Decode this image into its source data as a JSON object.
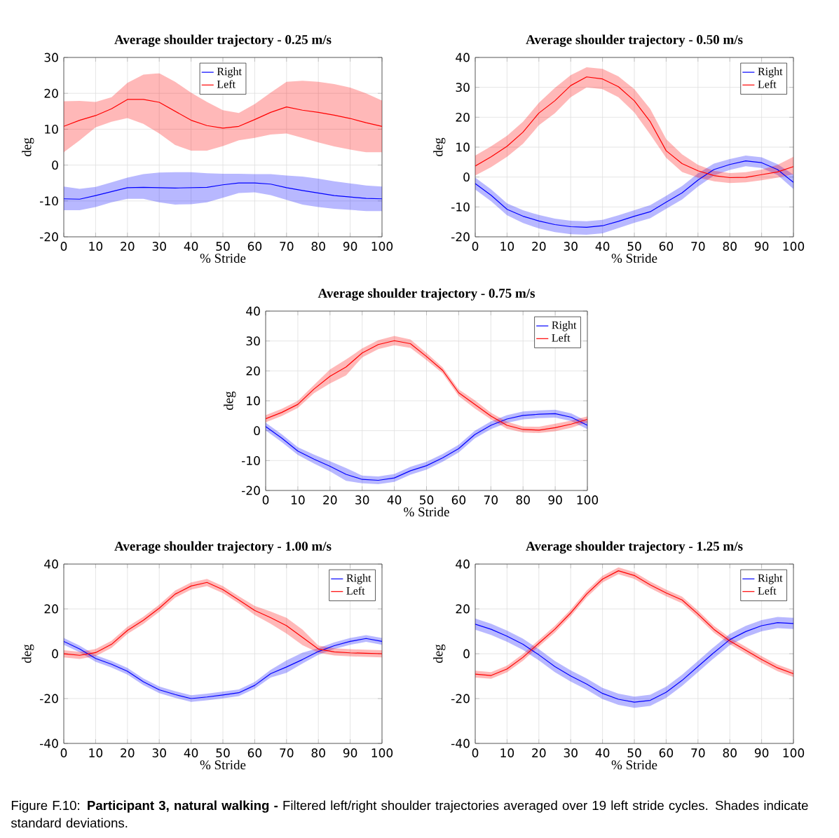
{
  "chart_data": [
    {
      "type": "line",
      "title": "Average shoulder trajectory - 0.25 m/s",
      "xlabel": "% Stride",
      "ylabel": "deg",
      "x": [
        0,
        5,
        10,
        15,
        20,
        25,
        30,
        35,
        40,
        45,
        50,
        55,
        60,
        65,
        70,
        75,
        80,
        85,
        90,
        95,
        100
      ],
      "xlim": [
        0,
        100
      ],
      "ylim": [
        -20,
        30
      ],
      "xticks": [
        0,
        10,
        20,
        30,
        40,
        50,
        60,
        70,
        80,
        90,
        100
      ],
      "yticks": [
        -20,
        -10,
        0,
        10,
        20,
        30
      ],
      "grid": true,
      "legend": "top",
      "series": [
        {
          "name": "Right",
          "color": "#0000ff",
          "values": [
            -9.4,
            -9.5,
            -8.5,
            -7.4,
            -6.3,
            -6.2,
            -6.3,
            -6.4,
            -6.3,
            -6.2,
            -5.5,
            -5.0,
            -5.0,
            -5.3,
            -6.3,
            -7.1,
            -7.8,
            -8.5,
            -8.9,
            -9.3,
            -9.4
          ],
          "upper": [
            -6.0,
            -6.6,
            -6.1,
            -4.8,
            -3.5,
            -2.5,
            -2.1,
            -2.0,
            -2.0,
            -2.3,
            -2.4,
            -2.4,
            -2.5,
            -2.5,
            -2.9,
            -3.2,
            -3.8,
            -4.5,
            -5.1,
            -5.7,
            -6.0
          ],
          "lower": [
            -12.6,
            -12.6,
            -11.7,
            -10.4,
            -9.4,
            -9.4,
            -10.4,
            -11.0,
            -10.9,
            -10.4,
            -9.1,
            -7.8,
            -7.6,
            -8.4,
            -9.7,
            -11.0,
            -11.7,
            -12.2,
            -12.5,
            -12.8,
            -12.8
          ]
        },
        {
          "name": "Left",
          "color": "#ff0000",
          "values": [
            10.8,
            12.5,
            13.8,
            15.7,
            18.3,
            18.3,
            17.5,
            15.0,
            12.5,
            11.0,
            10.3,
            10.8,
            12.7,
            14.7,
            16.2,
            15.3,
            14.7,
            13.9,
            13.0,
            11.8,
            10.8
          ],
          "upper": [
            17.8,
            17.9,
            17.6,
            18.9,
            22.9,
            25.2,
            25.6,
            23.2,
            20.2,
            17.6,
            15.3,
            14.5,
            17.0,
            20.2,
            23.2,
            23.5,
            23.2,
            22.6,
            21.6,
            20.0,
            18.0
          ],
          "lower": [
            3.6,
            6.9,
            10.5,
            12.1,
            13.1,
            11.5,
            8.8,
            5.6,
            4.0,
            4.0,
            5.3,
            6.9,
            7.6,
            8.5,
            8.8,
            7.6,
            6.3,
            5.2,
            4.3,
            3.6,
            3.6
          ]
        }
      ]
    },
    {
      "type": "line",
      "title": "Average shoulder trajectory - 0.50 m/s",
      "xlabel": "% Stride",
      "ylabel": "deg",
      "x": [
        0,
        5,
        10,
        15,
        20,
        25,
        30,
        35,
        40,
        45,
        50,
        55,
        60,
        65,
        70,
        75,
        80,
        85,
        90,
        95,
        100
      ],
      "xlim": [
        0,
        100
      ],
      "ylim": [
        -20,
        40
      ],
      "xticks": [
        0,
        10,
        20,
        30,
        40,
        50,
        60,
        70,
        80,
        90,
        100
      ],
      "yticks": [
        -20,
        -10,
        0,
        10,
        20,
        30,
        40
      ],
      "grid": true,
      "legend": "top right",
      "series": [
        {
          "name": "Right",
          "color": "#0000ff",
          "values": [
            -2.2,
            -6.1,
            -10.8,
            -13.1,
            -14.7,
            -15.9,
            -16.6,
            -16.8,
            -16.3,
            -14.8,
            -13.1,
            -11.6,
            -8.4,
            -5.3,
            -1.0,
            2.5,
            4.2,
            5.4,
            4.8,
            2.5,
            -1.8
          ],
          "upper": [
            -0.2,
            -4.1,
            -8.8,
            -11.1,
            -12.7,
            -13.9,
            -14.6,
            -14.8,
            -14.3,
            -12.8,
            -11.1,
            -9.4,
            -6.3,
            -3.0,
            1.2,
            4.5,
            6.0,
            7.2,
            6.6,
            4.3,
            0.8
          ],
          "lower": [
            -4.2,
            -8.1,
            -12.8,
            -15.4,
            -17.2,
            -18.4,
            -19.1,
            -19.3,
            -18.8,
            -17.1,
            -15.3,
            -13.8,
            -10.6,
            -7.5,
            -3.2,
            0.5,
            2.4,
            3.6,
            3.0,
            0.7,
            -4.0
          ]
        },
        {
          "name": "Left",
          "color": "#ff0000",
          "values": [
            3.7,
            6.8,
            10.3,
            15.0,
            21.4,
            25.5,
            30.6,
            33.5,
            32.8,
            30.2,
            25.5,
            18.5,
            8.8,
            4.5,
            2.1,
            0.5,
            -0.2,
            -0.1,
            0.8,
            1.7,
            3.5
          ],
          "upper": [
            7.2,
            10.3,
            13.8,
            18.5,
            24.8,
            29.8,
            34.1,
            36.7,
            36.2,
            33.7,
            29.4,
            22.8,
            12.7,
            7.6,
            4.1,
            2.1,
            1.3,
            1.6,
            2.5,
            4.1,
            6.8
          ],
          "lower": [
            0.5,
            3.3,
            6.8,
            11.1,
            17.3,
            21.3,
            26.7,
            30.0,
            29.4,
            26.7,
            21.6,
            14.2,
            6.4,
            1.7,
            -0.2,
            -1.4,
            -2.0,
            -1.8,
            -1.1,
            -0.2,
            0.9
          ]
        }
      ]
    },
    {
      "type": "line",
      "title": "Average shoulder trajectory - 0.75 m/s",
      "xlabel": "% Stride",
      "ylabel": "deg",
      "x": [
        0,
        5,
        10,
        15,
        20,
        25,
        30,
        35,
        40,
        45,
        50,
        55,
        60,
        65,
        70,
        75,
        80,
        85,
        90,
        95,
        100
      ],
      "xlim": [
        0,
        100
      ],
      "ylim": [
        -20,
        40
      ],
      "xticks": [
        0,
        10,
        20,
        30,
        40,
        50,
        60,
        70,
        80,
        90,
        100
      ],
      "yticks": [
        -20,
        -10,
        0,
        10,
        20,
        30,
        40
      ],
      "grid": true,
      "legend": "top right",
      "series": [
        {
          "name": "Right",
          "color": "#0000ff",
          "values": [
            1.4,
            -2.5,
            -6.8,
            -9.5,
            -11.9,
            -14.6,
            -16.3,
            -16.6,
            -15.8,
            -13.4,
            -11.7,
            -9.1,
            -6.0,
            -1.3,
            1.8,
            3.9,
            5.1,
            5.5,
            5.7,
            4.5,
            1.8
          ],
          "upper": [
            2.7,
            -1.2,
            -5.5,
            -8.0,
            -10.2,
            -12.5,
            -15.0,
            -15.3,
            -14.5,
            -12.1,
            -10.4,
            -7.8,
            -4.7,
            0.0,
            3.1,
            5.2,
            6.4,
            6.8,
            7.0,
            5.8,
            3.1
          ],
          "lower": [
            0.1,
            -3.8,
            -8.1,
            -11.0,
            -13.6,
            -16.8,
            -17.6,
            -17.9,
            -17.1,
            -14.7,
            -13.0,
            -10.4,
            -7.3,
            -2.6,
            0.5,
            2.6,
            3.8,
            4.2,
            4.4,
            3.2,
            0.5
          ]
        },
        {
          "name": "Left",
          "color": "#ff0000",
          "values": [
            4.0,
            6.1,
            8.8,
            13.9,
            18.2,
            21.3,
            26.0,
            28.8,
            30.1,
            29.1,
            24.8,
            20.2,
            12.7,
            8.8,
            4.9,
            1.8,
            0.4,
            0.2,
            1.0,
            2.2,
            3.8
          ],
          "upper": [
            5.2,
            7.3,
            10.0,
            15.3,
            20.5,
            23.8,
            27.5,
            30.3,
            31.7,
            30.5,
            26.0,
            21.2,
            13.8,
            10.2,
            6.0,
            3.0,
            1.4,
            1.3,
            2.3,
            3.4,
            4.8
          ],
          "lower": [
            2.8,
            4.9,
            7.6,
            12.5,
            15.8,
            18.5,
            24.5,
            27.3,
            28.6,
            27.7,
            23.6,
            19.2,
            11.6,
            7.4,
            3.8,
            0.6,
            -0.6,
            -0.8,
            -0.2,
            1.0,
            2.8
          ]
        }
      ]
    },
    {
      "type": "line",
      "title": "Average shoulder trajectory - 1.00 m/s",
      "xlabel": "% Stride",
      "ylabel": "deg",
      "x": [
        0,
        5,
        10,
        15,
        20,
        25,
        30,
        35,
        40,
        45,
        50,
        55,
        60,
        65,
        70,
        75,
        80,
        85,
        90,
        95,
        100
      ],
      "xlim": [
        0,
        100
      ],
      "ylim": [
        -40,
        40
      ],
      "xticks": [
        0,
        10,
        20,
        30,
        40,
        50,
        60,
        70,
        80,
        90,
        100
      ],
      "yticks": [
        -40,
        -20,
        0,
        20,
        40
      ],
      "grid": true,
      "legend": "top right",
      "series": [
        {
          "name": "Right",
          "color": "#0000ff",
          "values": [
            5.5,
            2.1,
            -2.1,
            -4.7,
            -7.8,
            -12.5,
            -16.1,
            -18.2,
            -20.0,
            -19.3,
            -18.4,
            -17.4,
            -14.1,
            -8.9,
            -5.9,
            -2.6,
            1.0,
            3.6,
            5.5,
            6.8,
            5.5
          ],
          "upper": [
            7.0,
            3.6,
            -0.6,
            -3.2,
            -6.3,
            -11.0,
            -14.6,
            -16.7,
            -18.5,
            -17.8,
            -16.9,
            -15.9,
            -12.6,
            -7.2,
            -3.0,
            0.5,
            2.5,
            5.1,
            7.0,
            8.3,
            7.0
          ],
          "lower": [
            4.0,
            0.6,
            -3.6,
            -6.2,
            -9.3,
            -14.0,
            -17.6,
            -19.7,
            -21.5,
            -20.8,
            -19.9,
            -18.9,
            -15.6,
            -10.6,
            -8.5,
            -4.4,
            -0.5,
            2.1,
            4.0,
            5.3,
            4.0
          ]
        },
        {
          "name": "Left",
          "color": "#ff0000",
          "values": [
            0,
            -0.7,
            0.5,
            4.2,
            10.4,
            14.9,
            20.3,
            26.6,
            30.2,
            31.8,
            28.6,
            24.0,
            19.3,
            16.1,
            12.5,
            7.3,
            2.1,
            0.8,
            0.4,
            0.2,
            0
          ],
          "upper": [
            1.6,
            0.9,
            2.1,
            5.8,
            12.0,
            16.5,
            21.9,
            28.2,
            31.8,
            33.4,
            30.2,
            25.6,
            21.3,
            18.8,
            16.0,
            10.8,
            3.7,
            2.4,
            2.0,
            1.8,
            1.6
          ],
          "lower": [
            -1.6,
            -2.3,
            -1.1,
            2.6,
            8.8,
            13.3,
            18.7,
            25.0,
            28.6,
            30.2,
            27.0,
            22.4,
            17.3,
            13.4,
            9.0,
            3.8,
            0.5,
            -0.8,
            -1.2,
            -1.4,
            -1.6
          ]
        }
      ]
    },
    {
      "type": "line",
      "title": "Average shoulder trajectory - 1.25 m/s",
      "xlabel": "% Stride",
      "ylabel": "deg",
      "x": [
        0,
        5,
        10,
        15,
        20,
        25,
        30,
        35,
        40,
        45,
        50,
        55,
        60,
        65,
        70,
        75,
        80,
        85,
        90,
        95,
        100
      ],
      "xlim": [
        0,
        100
      ],
      "ylim": [
        -40,
        40
      ],
      "xticks": [
        0,
        10,
        20,
        30,
        40,
        50,
        60,
        70,
        80,
        90,
        100
      ],
      "yticks": [
        -40,
        -20,
        0,
        20,
        40
      ],
      "grid": true,
      "legend": "top right",
      "annotations": [
        "Figure F.10: **Participant 3, natural walking -** Filtered left/right shoulder trajectories averaged over 19 left stride cycles. Shades indicate standard deviations."
      ],
      "series": [
        {
          "name": "Right",
          "color": "#0000ff",
          "values": [
            13.2,
            10.9,
            7.8,
            4.2,
            -0.5,
            -5.7,
            -9.9,
            -13.5,
            -17.7,
            -20.3,
            -21.6,
            -20.8,
            -17.2,
            -11.9,
            -5.7,
            0.5,
            6.3,
            9.9,
            12.5,
            13.9,
            13.5
          ],
          "upper": [
            15.7,
            13.4,
            10.3,
            6.7,
            2.0,
            -3.2,
            -7.4,
            -11.0,
            -15.2,
            -17.8,
            -19.1,
            -18.3,
            -14.7,
            -9.4,
            -3.2,
            3.0,
            8.8,
            12.4,
            15.0,
            16.4,
            16.0
          ],
          "lower": [
            10.7,
            8.4,
            5.3,
            1.7,
            -3.0,
            -8.2,
            -12.4,
            -16.0,
            -20.2,
            -22.8,
            -24.1,
            -23.3,
            -19.7,
            -14.4,
            -8.2,
            -2.0,
            3.8,
            7.4,
            10.0,
            11.4,
            11.0
          ]
        },
        {
          "name": "Left",
          "color": "#ff0000",
          "values": [
            -9.1,
            -9.7,
            -6.8,
            -1.6,
            4.7,
            10.9,
            18.2,
            26.6,
            33.3,
            37.0,
            34.9,
            30.7,
            27.1,
            24.0,
            17.7,
            10.9,
            5.7,
            1.6,
            -2.6,
            -6.3,
            -8.9
          ],
          "upper": [
            -7.6,
            -8.2,
            -5.3,
            -0.1,
            6.2,
            12.4,
            19.7,
            28.1,
            34.8,
            38.5,
            36.4,
            32.2,
            28.6,
            25.5,
            19.2,
            12.4,
            7.2,
            3.1,
            -1.1,
            -4.8,
            -7.4
          ],
          "lower": [
            -10.6,
            -11.2,
            -8.3,
            -3.1,
            3.2,
            9.4,
            16.7,
            25.1,
            31.8,
            35.5,
            33.4,
            29.2,
            25.6,
            22.5,
            16.2,
            9.4,
            4.2,
            0.1,
            -4.1,
            -7.8,
            -10.4
          ]
        }
      ]
    }
  ]
}
